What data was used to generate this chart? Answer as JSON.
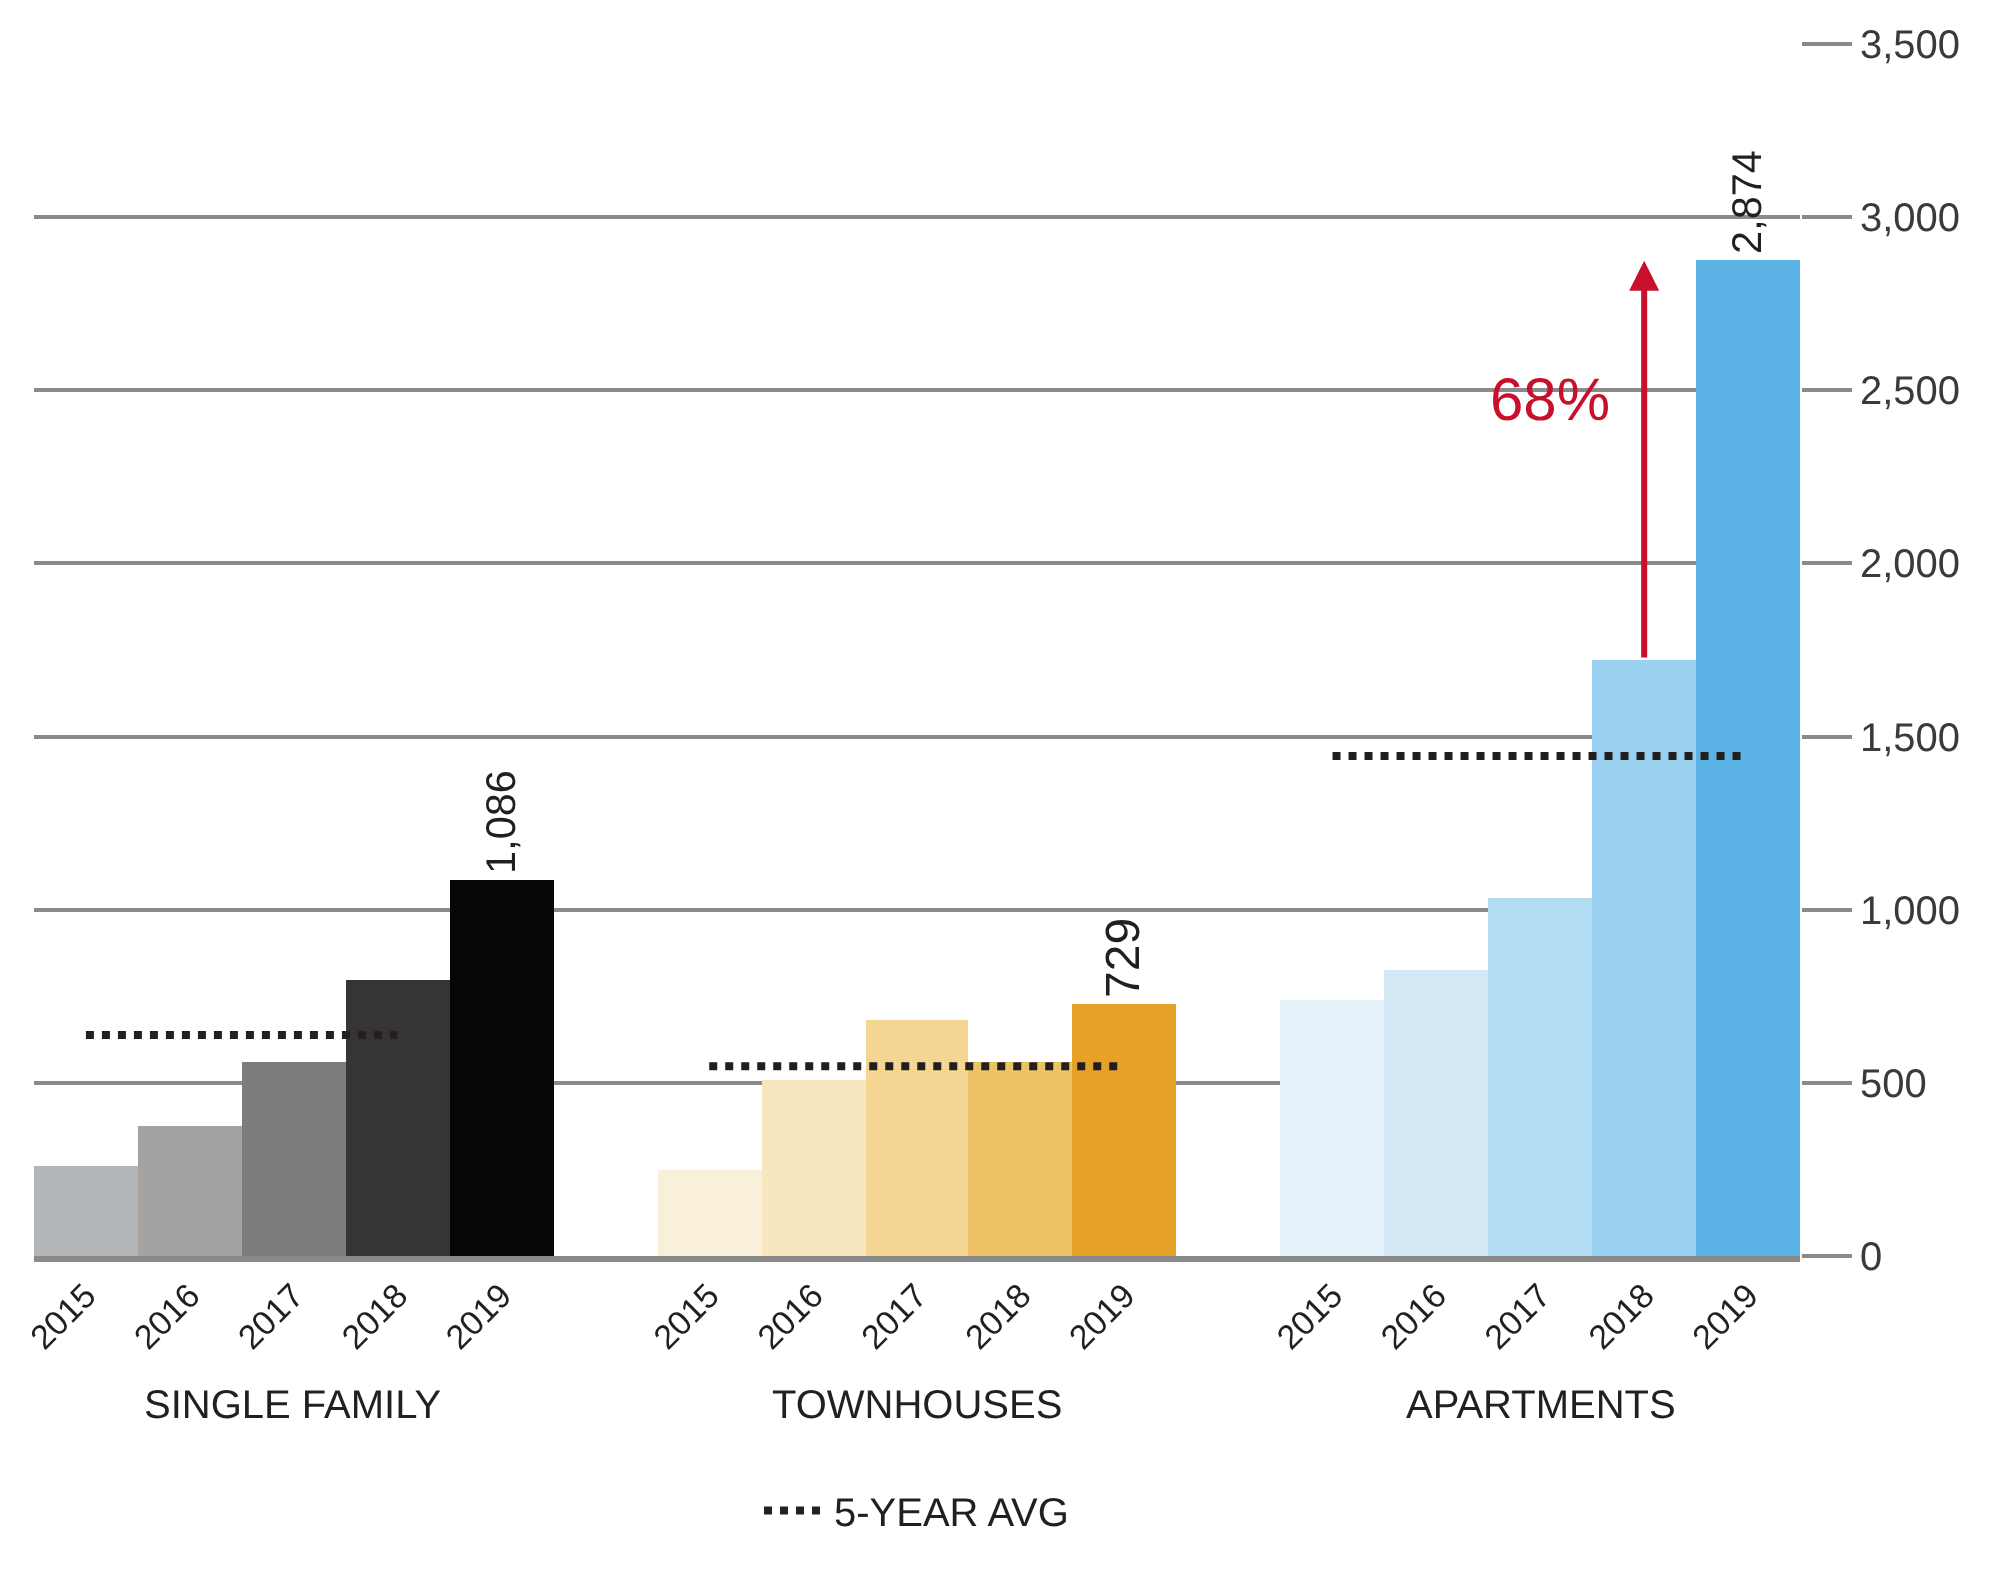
{
  "chart_data": {
    "type": "bar",
    "categories": [
      "2015",
      "2016",
      "2017",
      "2018",
      "2019",
      null,
      "2015",
      "2016",
      "2017",
      "2018",
      "2019",
      null,
      "2015",
      "2016",
      "2017",
      "2018",
      "2019"
    ],
    "series": [
      {
        "values": [
          260,
          373,
          560,
          797,
          1086,
          null,
          249,
          509,
          680,
          560,
          729,
          null,
          742,
          827,
          1034,
          1720,
          2874
        ],
        "colors": [
          "#b2b6b8",
          "#a4a3a2",
          "#7d7c7b",
          "#363435",
          "#070707",
          null,
          "#f8f0d8",
          "#f7e6c0",
          "#f5d592",
          "#eec266",
          "#e5a128",
          null,
          "#e6f2fa",
          "#d3e9f6",
          "#b2dcf4",
          "#9bd1f0",
          "#5ab2e5"
        ],
        "value_labels": [
          null,
          null,
          null,
          null,
          "1,086",
          null,
          null,
          null,
          null,
          null,
          "729",
          null,
          null,
          null,
          null,
          null,
          "2,874"
        ]
      },
      {
        "type": "line",
        "name": "5-YEAR AVG",
        "color": "#231f20",
        "values": [
          638,
          638,
          638,
          638,
          null,
          null,
          null,
          null,
          null,
          null,
          null,
          null,
          null,
          null,
          null,
          null,
          null
        ]
      },
      {
        "type": "line",
        "color": "#231f20",
        "values": [
          null,
          null,
          null,
          null,
          null,
          null,
          548,
          548,
          548,
          548,
          548,
          null,
          null,
          null,
          null,
          null,
          null
        ]
      },
      {
        "type": "line",
        "color": "#231f20",
        "values": [
          null,
          null,
          null,
          null,
          null,
          null,
          null,
          null,
          null,
          null,
          null,
          null,
          1444,
          1444,
          1444,
          1444,
          1444
        ]
      }
    ],
    "line_style": "dotted",
    "marker": "none",
    "ylim": [
      0,
      3500
    ],
    "yticks": [
      0,
      500,
      {
        "value": 1000,
        "label": "1,000"
      },
      {
        "value": 1500,
        "label": "1,500"
      },
      {
        "value": 2000,
        "label": "2,000"
      },
      {
        "value": 2500,
        "label": "2,500"
      },
      {
        "value": 3000,
        "label": "3,000"
      },
      {
        "value": 3500,
        "label": "3,500"
      }
    ],
    "grid": "y",
    "legend": "bottom",
    "annotations": [
      "SINGLE FAMILY",
      "TOWNHOUSES",
      "APARTMENTS",
      "68%"
    ]
  }
}
